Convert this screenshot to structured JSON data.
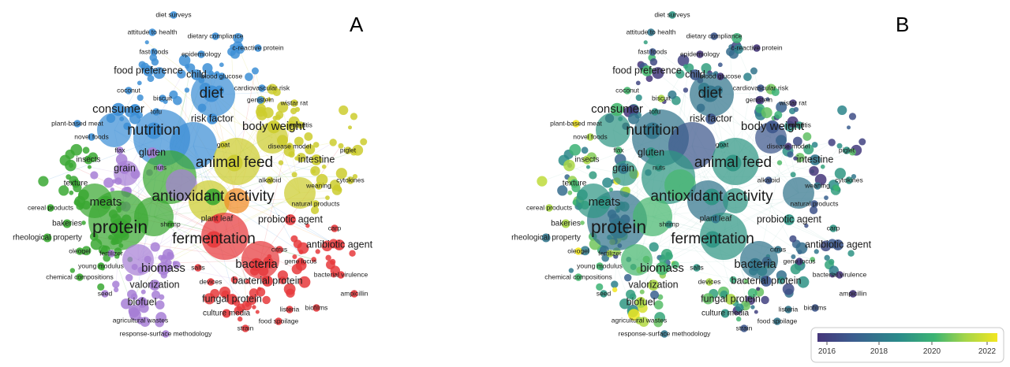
{
  "panels": {
    "a_letter": "A",
    "b_letter": "B"
  },
  "colorbar": {
    "ticks": [
      "2016",
      "2018",
      "2020",
      "2022"
    ],
    "gradient_colors": [
      "#45367a",
      "#3b5d8f",
      "#2a8a8a",
      "#3cb473",
      "#a3d549",
      "#f2e621"
    ]
  },
  "cluster_colors": {
    "blue": "#3d8fd6",
    "green": "#3aa832",
    "purple": "#a77fd6",
    "yellow": "#cccc2e",
    "red": "#e6393c",
    "orange": "#f08a24"
  },
  "network": {
    "labels": [
      {
        "text": "diet surveys",
        "cluster": "blue",
        "size": "xs",
        "year": 2019
      },
      {
        "text": "attitude to health",
        "cluster": "blue",
        "size": "xs",
        "year": 2018
      },
      {
        "text": "dietary compliance",
        "cluster": "blue",
        "size": "xs",
        "year": 2017
      },
      {
        "text": "c-reactive protein",
        "cluster": "blue",
        "size": "xs",
        "year": 2016
      },
      {
        "text": "fast foods",
        "cluster": "blue",
        "size": "xs",
        "year": 2017
      },
      {
        "text": "epidemiology",
        "cluster": "blue",
        "size": "xs",
        "year": 2016
      },
      {
        "text": "food preference",
        "cluster": "blue",
        "size": "m",
        "year": 2020
      },
      {
        "text": "child",
        "cluster": "blue",
        "size": "m",
        "year": 2017
      },
      {
        "text": "blood glucose",
        "cluster": "blue",
        "size": "xs",
        "year": 2016
      },
      {
        "text": "coconut",
        "cluster": "blue",
        "size": "xs",
        "year": 2020
      },
      {
        "text": "diet",
        "cluster": "blue",
        "size": "xl",
        "year": 2018
      },
      {
        "text": "cardiovascular risk",
        "cluster": "blue",
        "size": "xs",
        "year": 2017
      },
      {
        "text": "biscuit",
        "cluster": "blue",
        "size": "xs",
        "year": 2021
      },
      {
        "text": "genistein",
        "cluster": "blue",
        "size": "xs",
        "year": 2016
      },
      {
        "text": "wistar rat",
        "cluster": "yellow",
        "size": "xs",
        "year": 2016
      },
      {
        "text": "consumer",
        "cluster": "blue",
        "size": "l",
        "year": 2020
      },
      {
        "text": "tofu",
        "cluster": "blue",
        "size": "xs",
        "year": 2019
      },
      {
        "text": "risk factor",
        "cluster": "blue",
        "size": "m",
        "year": 2017
      },
      {
        "text": "plant-based meat",
        "cluster": "blue",
        "size": "xs",
        "year": 2022
      },
      {
        "text": "nutrition",
        "cluster": "blue",
        "size": "xl",
        "year": 2018
      },
      {
        "text": "body weight",
        "cluster": "yellow",
        "size": "l",
        "year": 2017
      },
      {
        "text": "enteritis",
        "cluster": "yellow",
        "size": "xs",
        "year": 2019
      },
      {
        "text": "novel foods",
        "cluster": "blue",
        "size": "xs",
        "year": 2021
      },
      {
        "text": "disease model",
        "cluster": "yellow",
        "size": "xs",
        "year": 2016
      },
      {
        "text": "goat",
        "cluster": "yellow",
        "size": "xs",
        "year": 2019
      },
      {
        "text": "flax",
        "cluster": "purple",
        "size": "xs",
        "year": 2020
      },
      {
        "text": "gluten",
        "cluster": "purple",
        "size": "m",
        "year": 2019
      },
      {
        "text": "piglet",
        "cluster": "yellow",
        "size": "xs",
        "year": 2019
      },
      {
        "text": "insects",
        "cluster": "green",
        "size": "s",
        "year": 2021
      },
      {
        "text": "animal feed",
        "cluster": "yellow",
        "size": "xl",
        "year": 2019
      },
      {
        "text": "intestine",
        "cluster": "yellow",
        "size": "m",
        "year": 2018
      },
      {
        "text": "grain",
        "cluster": "purple",
        "size": "m",
        "year": 2018
      },
      {
        "text": "nuts",
        "cluster": "purple",
        "size": "xs",
        "year": 2019
      },
      {
        "text": "texture",
        "cluster": "green",
        "size": "s",
        "year": 2020
      },
      {
        "text": "alkaloid",
        "cluster": "yellow",
        "size": "xs",
        "year": 2017
      },
      {
        "text": "cytokines",
        "cluster": "yellow",
        "size": "xs",
        "year": 2019
      },
      {
        "text": "antioxidant activity",
        "cluster": "green",
        "size": "xl",
        "year": 2019
      },
      {
        "text": "weaning",
        "cluster": "yellow",
        "size": "xs",
        "year": 2018
      },
      {
        "text": "meats",
        "cluster": "green",
        "size": "l",
        "year": 2019
      },
      {
        "text": "natural products",
        "cluster": "yellow",
        "size": "xs",
        "year": 2017
      },
      {
        "text": "cereal products",
        "cluster": "green",
        "size": "xs",
        "year": 2021
      },
      {
        "text": "plant leaf",
        "cluster": "red",
        "size": "s",
        "year": 2018
      },
      {
        "text": "probiotic agent",
        "cluster": "red",
        "size": "m",
        "year": 2019
      },
      {
        "text": "bakeries",
        "cluster": "green",
        "size": "s",
        "year": 2021
      },
      {
        "text": "protein",
        "cluster": "green",
        "size": "xxl",
        "year": 2018
      },
      {
        "text": "shrimp",
        "cluster": "green",
        "size": "xs",
        "year": 2019
      },
      {
        "text": "carp",
        "cluster": "red",
        "size": "xs",
        "year": 2019
      },
      {
        "text": "rheological property",
        "cluster": "green",
        "size": "s",
        "year": 2018
      },
      {
        "text": "fermentation",
        "cluster": "red",
        "size": "xl",
        "year": 2019
      },
      {
        "text": "antibiotic agent",
        "cluster": "red",
        "size": "m",
        "year": 2017
      },
      {
        "text": "oleogel",
        "cluster": "green",
        "size": "xs",
        "year": 2022
      },
      {
        "text": "fertilizer",
        "cluster": "purple",
        "size": "xs",
        "year": 2021
      },
      {
        "text": "citrus",
        "cluster": "red",
        "size": "xs",
        "year": 2018
      },
      {
        "text": "young modulus",
        "cluster": "green",
        "size": "xs",
        "year": 2020
      },
      {
        "text": "bacteria",
        "cluster": "red",
        "size": "l",
        "year": 2018
      },
      {
        "text": "gene locus",
        "cluster": "red",
        "size": "xs",
        "year": 2016
      },
      {
        "text": "biomass",
        "cluster": "purple",
        "size": "l",
        "year": 2020
      },
      {
        "text": "salts",
        "cluster": "red",
        "size": "xs",
        "year": 2019
      },
      {
        "text": "chemical compositions",
        "cluster": "green",
        "size": "xs",
        "year": 2020
      },
      {
        "text": "bacterial virulence",
        "cluster": "red",
        "size": "xs",
        "year": 2016
      },
      {
        "text": "bacterial protein",
        "cluster": "red",
        "size": "m",
        "year": 2017
      },
      {
        "text": "devices",
        "cluster": "red",
        "size": "xs",
        "year": 2021
      },
      {
        "text": "valorization",
        "cluster": "purple",
        "size": "m",
        "year": 2021
      },
      {
        "text": "seed",
        "cluster": "purple",
        "size": "xs",
        "year": 2019
      },
      {
        "text": "ampicillin",
        "cluster": "red",
        "size": "xs",
        "year": 2016
      },
      {
        "text": "fungal protein",
        "cluster": "red",
        "size": "m",
        "year": 2021
      },
      {
        "text": "biofuel",
        "cluster": "purple",
        "size": "m",
        "year": 2021
      },
      {
        "text": "listeria",
        "cluster": "red",
        "size": "xs",
        "year": 2018
      },
      {
        "text": "biofilms",
        "cluster": "red",
        "size": "xs",
        "year": 2017
      },
      {
        "text": "culture media",
        "cluster": "red",
        "size": "s",
        "year": 2019
      },
      {
        "text": "agricultural wastes",
        "cluster": "purple",
        "size": "xs",
        "year": 2021
      },
      {
        "text": "food spoilage",
        "cluster": "red",
        "size": "xs",
        "year": 2018
      },
      {
        "text": "strain",
        "cluster": "red",
        "size": "xs",
        "year": 2017
      },
      {
        "text": "response-surface methodology",
        "cluster": "purple",
        "size": "xs",
        "year": 2018
      }
    ]
  }
}
